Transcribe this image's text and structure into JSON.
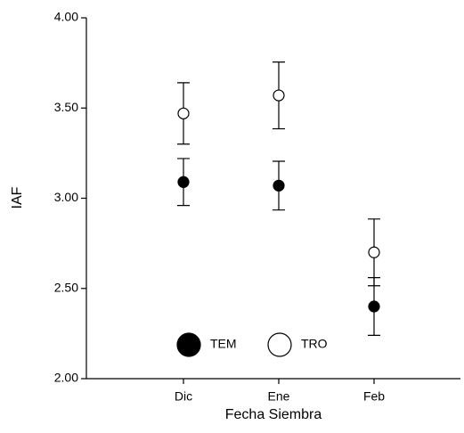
{
  "chart_data": {
    "type": "errorbar-scatter",
    "xlabel": "Fecha Siembra",
    "ylabel": "IAF",
    "categories": [
      "Dic",
      "Ene",
      "Feb"
    ],
    "series": [
      {
        "name": "TEM",
        "color": "#000000",
        "values": [
          3.09,
          3.07,
          2.4
        ],
        "errors": [
          0.13,
          0.135,
          0.16
        ]
      },
      {
        "name": "TRO",
        "color": "#ffffff",
        "values": [
          3.47,
          3.57,
          2.7
        ],
        "errors": [
          0.17,
          0.185,
          0.185
        ]
      }
    ],
    "ylim": [
      2,
      4
    ],
    "yticks": [
      {
        "value": 2,
        "label": "2.00"
      },
      {
        "value": 2.5,
        "label": "2.50"
      },
      {
        "value": 3,
        "label": "3.00"
      },
      {
        "value": 3.5,
        "label": "3.50"
      },
      {
        "value": 4,
        "label": "4.00"
      }
    ],
    "legend": "lower center"
  }
}
